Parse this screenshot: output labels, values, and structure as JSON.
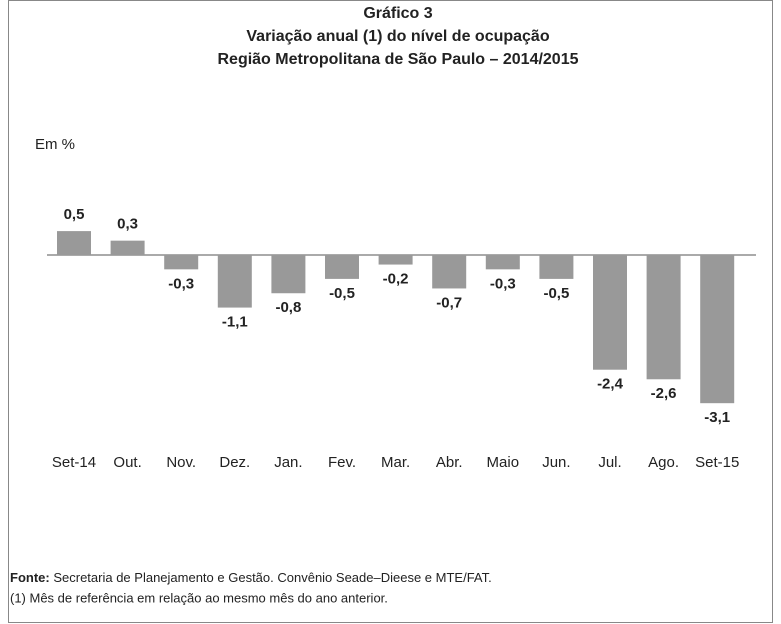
{
  "chart_data": {
    "type": "bar",
    "title": [
      "Gráfico 3",
      "Variação anual (1) do nível de ocupação",
      "Região Metropolitana de São Paulo – 2014/2015"
    ],
    "unit_label": "Em %",
    "categories": [
      "Set-14",
      "Out.",
      "Nov.",
      "Dez.",
      "Jan.",
      "Fev.",
      "Mar.",
      "Abr.",
      "Maio",
      "Jun.",
      "Jul.",
      "Ago.",
      "Set-15"
    ],
    "values": [
      0.5,
      0.3,
      -0.3,
      -1.1,
      -0.8,
      -0.5,
      -0.2,
      -0.7,
      -0.3,
      -0.5,
      -2.4,
      -2.6,
      -3.1
    ],
    "value_labels": [
      "0,5",
      "0,3",
      "-0,3",
      "-1,1",
      "-0,8",
      "-0,5",
      "-0,2",
      "-0,7",
      "-0,3",
      "-0,5",
      "-2,4",
      "-2,6",
      "-3,1"
    ],
    "color": "#999999",
    "source_label": "Fonte:",
    "source": "Secretaria de Planejamento e Gestão. Convênio Seade–Dieese e MTE/FAT.",
    "footnote": "(1) Mês de referência em relação ao mesmo mês do ano anterior."
  }
}
